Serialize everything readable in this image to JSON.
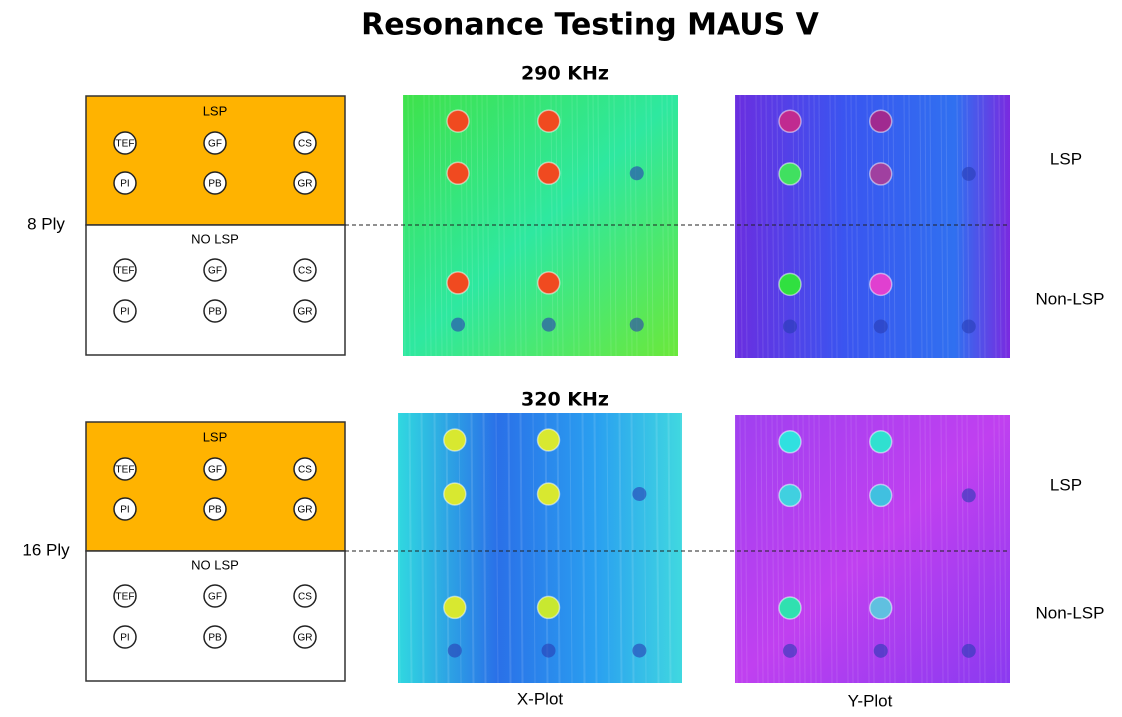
{
  "title": "Resonance Testing MAUS V",
  "panels": [
    {
      "frequency": "290 KHz",
      "ply": "8 Ply",
      "diagram": {
        "top_label": "LSP",
        "bottom_label": "NO LSP",
        "top_rows": [
          [
            "TEF",
            "GF",
            "CS"
          ],
          [
            "PI",
            "PB",
            "GR"
          ]
        ],
        "bottom_rows": [
          [
            "TEF",
            "GF",
            "CS"
          ],
          [
            "PI",
            "PB",
            "GR"
          ]
        ]
      },
      "row_labels": [
        "LSP",
        "Non-LSP"
      ]
    },
    {
      "frequency": "320 KHz",
      "ply": "16 Ply",
      "diagram": {
        "top_label": "LSP",
        "bottom_label": "NO LSP",
        "top_rows": [
          [
            "TEF",
            "GF",
            "CS"
          ],
          [
            "PI",
            "PB",
            "GR"
          ]
        ],
        "bottom_rows": [
          [
            "TEF",
            "GF",
            "CS"
          ],
          [
            "PI",
            "PB",
            "GR"
          ]
        ]
      },
      "row_labels": [
        "LSP",
        "Non-LSP"
      ]
    }
  ],
  "x_plot_label": "X-Plot",
  "y_plot_label": "Y-Plot"
}
